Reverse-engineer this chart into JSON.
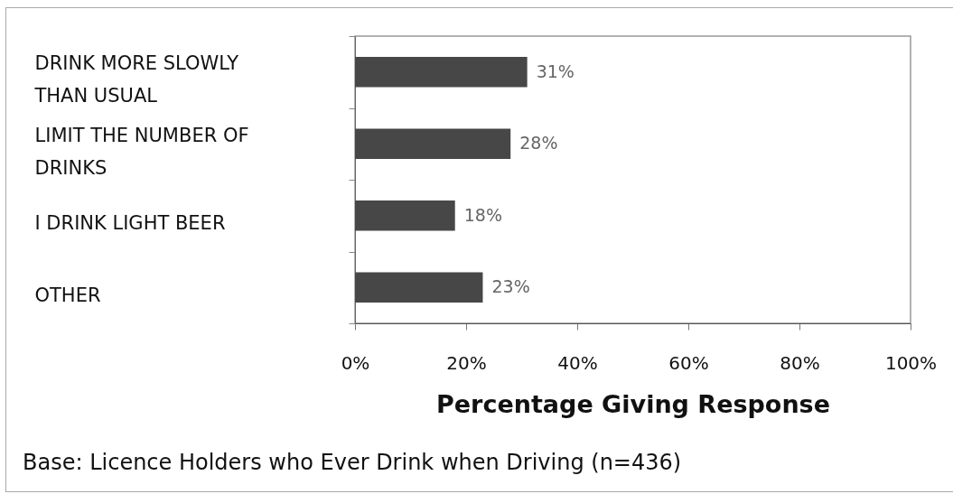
{
  "chart_data": {
    "type": "bar",
    "orientation": "horizontal",
    "categories": [
      "DRINK MORE SLOWLY THAN USUAL",
      "LIMIT THE NUMBER OF DRINKS",
      "I DRINK LIGHT BEER",
      "OTHER"
    ],
    "values": [
      31,
      28,
      18,
      23
    ],
    "value_labels": [
      "31%",
      "28%",
      "18%",
      "23%"
    ],
    "color": "#474747",
    "xlabel": "Percentage Giving Response",
    "xlim": [
      0,
      100
    ],
    "xticks": [
      {
        "value": 0,
        "label": "0%"
      },
      {
        "value": 20,
        "label": "20%"
      },
      {
        "value": 40,
        "label": "40%"
      },
      {
        "value": 60,
        "label": "60%"
      },
      {
        "value": 80,
        "label": "80%"
      },
      {
        "value": 100,
        "label": "100%"
      }
    ],
    "grid": false,
    "annotations": [
      "Base: Licence Holders who Ever Drink when Driving (n=436)"
    ]
  }
}
